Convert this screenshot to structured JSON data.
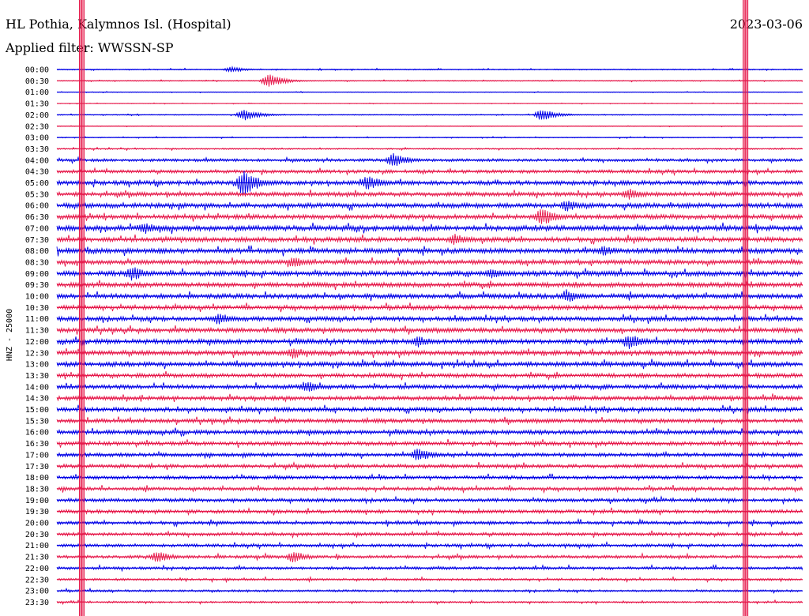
{
  "header": {
    "station": "HL Pothia, Kalymnos Isl. (Hospital)",
    "date": "2023-03-06",
    "filter": "Applied filter: WWSSN-SP"
  },
  "chart_data": {
    "type": "line",
    "title": "HL Pothia, Kalymnos Isl. (Hospital)",
    "subtitle": "Applied filter: WWSSN-SP",
    "date": "2023-03-06",
    "ylabel": "HNZ - 25000",
    "xlabel": "",
    "rows": [
      "00:00",
      "00:30",
      "01:00",
      "01:30",
      "02:00",
      "02:30",
      "03:00",
      "03:30",
      "04:00",
      "04:30",
      "05:00",
      "05:30",
      "06:00",
      "06:30",
      "07:00",
      "07:30",
      "08:00",
      "08:30",
      "09:00",
      "09:30",
      "10:00",
      "10:30",
      "11:00",
      "11:30",
      "12:00",
      "12:30",
      "13:00",
      "13:30",
      "14:00",
      "14:30",
      "15:00",
      "15:30",
      "16:00",
      "16:30",
      "17:00",
      "17:30",
      "18:00",
      "18:30",
      "19:00",
      "19:30",
      "20:00",
      "20:30",
      "21:00",
      "21:30",
      "22:00",
      "22:30",
      "23:00",
      "23:30"
    ],
    "colors": [
      "#0000e6",
      "#e6194b"
    ],
    "noise_level": [
      0.5,
      0.4,
      0.3,
      0.25,
      0.4,
      0.3,
      0.4,
      0.6,
      1.2,
      1.4,
      1.8,
      1.8,
      2.0,
      2.0,
      2.2,
      2.0,
      2.1,
      1.9,
      2.1,
      2.0,
      2.0,
      1.9,
      1.9,
      1.9,
      2.0,
      2.0,
      2.0,
      1.8,
      1.8,
      1.8,
      1.8,
      1.7,
      1.8,
      1.7,
      1.6,
      1.6,
      1.5,
      1.5,
      1.5,
      1.5,
      1.4,
      1.4,
      1.3,
      1.3,
      1.2,
      1.0,
      0.9,
      0.8
    ],
    "events": [
      {
        "row": "00:00",
        "minute": 7.0,
        "amplitude": 4
      },
      {
        "row": "00:30",
        "minute": 8.5,
        "amplitude": 9
      },
      {
        "row": "02:00",
        "minute": 7.5,
        "amplitude": 8
      },
      {
        "row": "02:00",
        "minute": 19.5,
        "amplitude": 8
      },
      {
        "row": "04:00",
        "minute": 13.5,
        "amplitude": 10
      },
      {
        "row": "05:00",
        "minute": 7.5,
        "amplitude": 18
      },
      {
        "row": "05:00",
        "minute": 12.5,
        "amplitude": 10
      },
      {
        "row": "05:30",
        "minute": 23.0,
        "amplitude": 8
      },
      {
        "row": "06:00",
        "minute": 20.5,
        "amplitude": 8
      },
      {
        "row": "06:30",
        "minute": 19.5,
        "amplitude": 12
      },
      {
        "row": "07:00",
        "minute": 3.5,
        "amplitude": 8
      },
      {
        "row": "07:30",
        "minute": 16.0,
        "amplitude": 8
      },
      {
        "row": "08:00",
        "minute": 22.0,
        "amplitude": 7
      },
      {
        "row": "08:30",
        "minute": 9.5,
        "amplitude": 8
      },
      {
        "row": "09:00",
        "minute": 3.0,
        "amplitude": 10
      },
      {
        "row": "09:00",
        "minute": 17.5,
        "amplitude": 8
      },
      {
        "row": "10:00",
        "minute": 20.5,
        "amplitude": 9
      },
      {
        "row": "11:00",
        "minute": 6.5,
        "amplitude": 8
      },
      {
        "row": "12:00",
        "minute": 14.5,
        "amplitude": 8
      },
      {
        "row": "12:00",
        "minute": 23.0,
        "amplitude": 11
      },
      {
        "row": "12:30",
        "minute": 9.5,
        "amplitude": 8
      },
      {
        "row": "14:00",
        "minute": 10.0,
        "amplitude": 8
      },
      {
        "row": "17:00",
        "minute": 14.5,
        "amplitude": 9
      },
      {
        "row": "21:30",
        "minute": 4.0,
        "amplitude": 8
      },
      {
        "row": "21:30",
        "minute": 9.5,
        "amplitude": 8
      }
    ],
    "saturation_marks": [
      {
        "minute": 1.0
      },
      {
        "minute": 27.7
      }
    ],
    "grid": false
  }
}
